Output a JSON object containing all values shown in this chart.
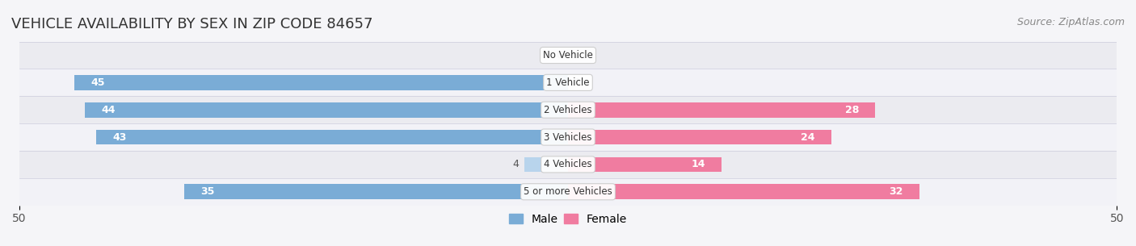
{
  "title": "VEHICLE AVAILABILITY BY SEX IN ZIP CODE 84657",
  "source": "Source: ZipAtlas.com",
  "categories": [
    "No Vehicle",
    "1 Vehicle",
    "2 Vehicles",
    "3 Vehicles",
    "4 Vehicles",
    "5 or more Vehicles"
  ],
  "male_values": [
    0,
    45,
    44,
    43,
    4,
    35
  ],
  "female_values": [
    0,
    0,
    28,
    24,
    14,
    32
  ],
  "male_color": "#7aacd6",
  "female_color": "#f07ca0",
  "male_light_color": "#b8d4ec",
  "female_light_color": "#f7b8cc",
  "xlim": 50,
  "bar_height": 0.55,
  "row_bg_color_odd": "#f0f0f5",
  "row_bg_color_even": "#e8e8f0",
  "label_color_on_bar": "#ffffff",
  "label_color_off_bar": "#555555",
  "axis_label_fontsize": 11,
  "title_fontsize": 13,
  "source_fontsize": 9,
  "legend_fontsize": 10
}
